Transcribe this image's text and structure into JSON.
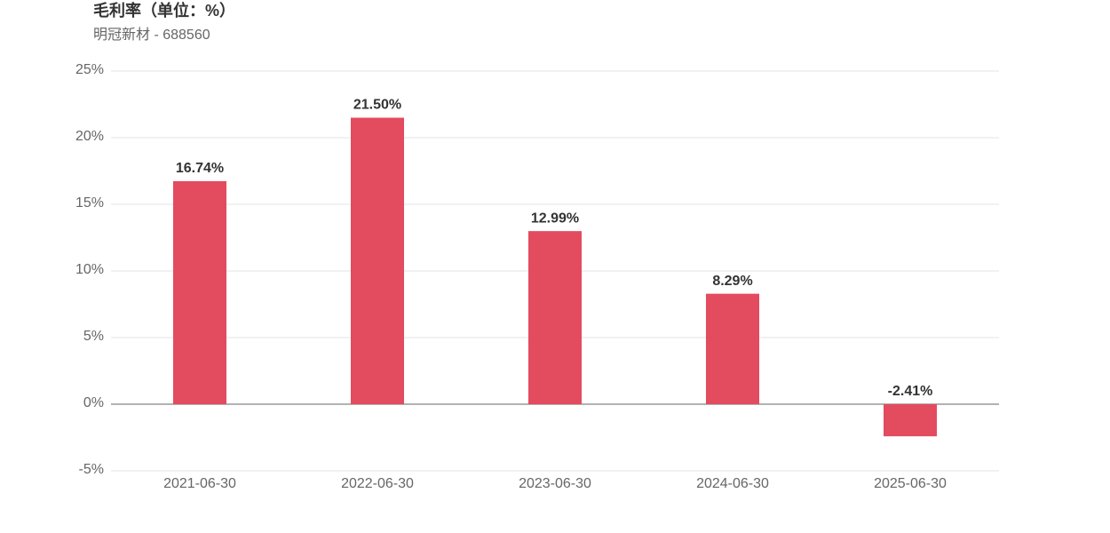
{
  "chart_data": {
    "type": "bar",
    "title": "毛利率（单位：%）",
    "subtitle": "明冠新材 - 688560",
    "categories": [
      "2021-06-30",
      "2022-06-30",
      "2023-06-30",
      "2024-06-30",
      "2025-06-30"
    ],
    "values": [
      16.74,
      21.5,
      12.99,
      8.29,
      -2.41
    ],
    "value_labels": [
      "16.74%",
      "21.50%",
      "12.99%",
      "8.29%",
      "-2.41%"
    ],
    "color": "#e34b5f",
    "ylim": [
      -5,
      25
    ],
    "yticks": [
      {
        "value": -5,
        "label": "-5%"
      },
      {
        "value": 0,
        "label": "0%"
      },
      {
        "value": 5,
        "label": "5%"
      },
      {
        "value": 10,
        "label": "10%"
      },
      {
        "value": 15,
        "label": "15%"
      },
      {
        "value": 20,
        "label": "20%"
      },
      {
        "value": 25,
        "label": "25%"
      }
    ],
    "grid": true
  }
}
